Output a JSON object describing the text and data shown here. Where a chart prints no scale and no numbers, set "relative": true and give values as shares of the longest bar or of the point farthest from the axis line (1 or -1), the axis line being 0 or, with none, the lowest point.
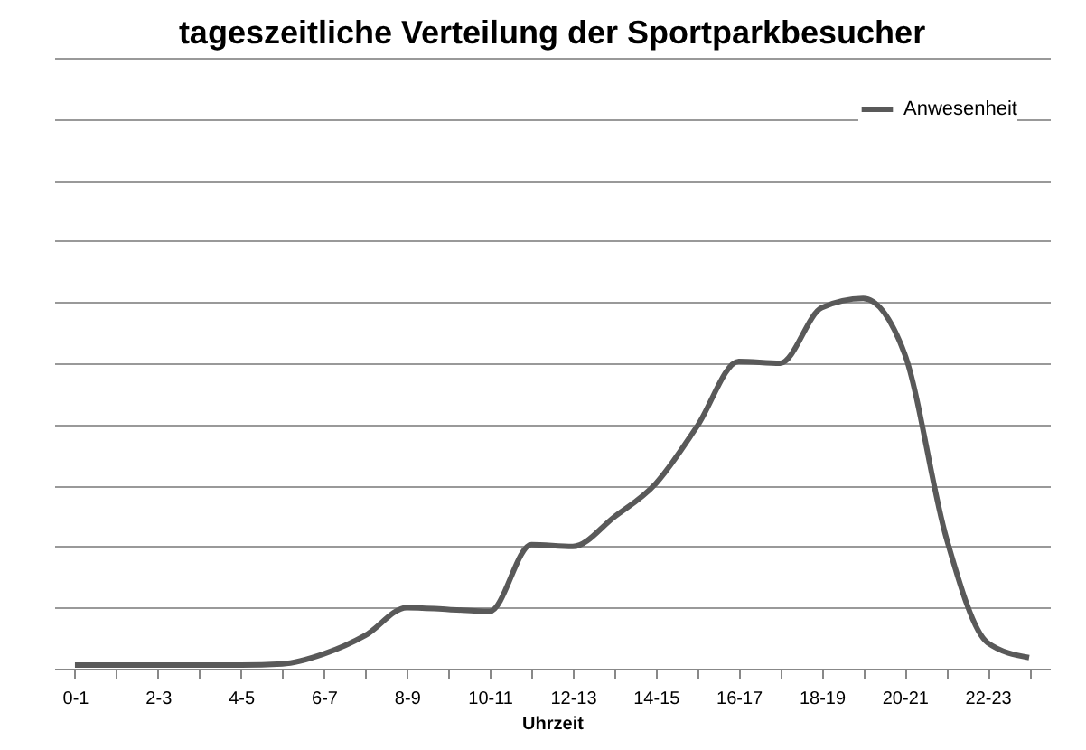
{
  "chart_data": {
    "type": "line",
    "title": "tageszeitliche Verteilung der Sportparkbesucher",
    "xlabel": "Uhrzeit",
    "categories": [
      "0-1",
      null,
      "2-3",
      null,
      "4-5",
      null,
      "6-7",
      null,
      "8-9",
      null,
      "10-11",
      null,
      "12-13",
      null,
      "14-15",
      null,
      "16-17",
      null,
      "18-19",
      null,
      "20-21",
      null,
      "22-23",
      null
    ],
    "relative": true,
    "series": [
      {
        "name": "Anwesenheit",
        "color": "#595959",
        "values": [
          0.01,
          0.01,
          0.01,
          0.01,
          0.01,
          0.013,
          0.04,
          0.09,
          0.165,
          0.16,
          0.155,
          0.335,
          0.33,
          0.41,
          0.5,
          0.655,
          0.83,
          0.825,
          0.975,
          1,
          0.85,
          0.355,
          0.07,
          0.03
        ]
      }
    ],
    "grid": "y",
    "legend": "top right",
    "marker": "none",
    "line_style": "solid"
  }
}
